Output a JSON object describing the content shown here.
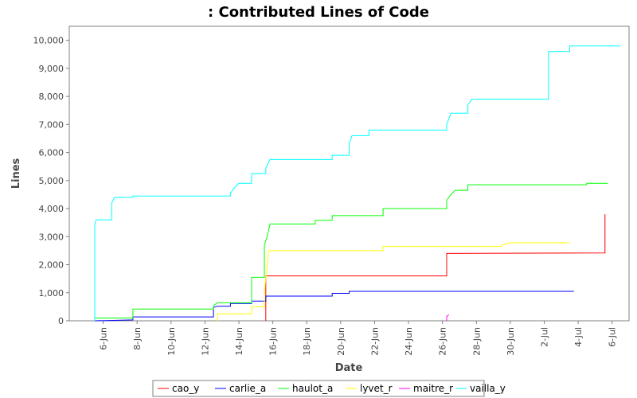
{
  "chart_data": {
    "type": "line",
    "title": ": Contributed Lines of Code",
    "xlabel": "Date",
    "ylabel": "Lines",
    "x_domain": [
      "2005-06-04",
      "2005-07-07"
    ],
    "ylim": [
      0,
      10500
    ],
    "y_ticks": [
      0,
      1000,
      2000,
      3000,
      4000,
      5000,
      6000,
      7000,
      8000,
      9000,
      10000
    ],
    "y_tick_labels": [
      "0",
      "1,000",
      "2,000",
      "3,000",
      "4,000",
      "5,000",
      "6,000",
      "7,000",
      "8,000",
      "9,000",
      "10,000"
    ],
    "x_ticks": [
      "2005-06-06",
      "2005-06-08",
      "2005-06-10",
      "2005-06-12",
      "2005-06-14",
      "2005-06-16",
      "2005-06-18",
      "2005-06-20",
      "2005-06-22",
      "2005-06-24",
      "2005-06-26",
      "2005-06-28",
      "2005-06-30",
      "2005-07-02",
      "2005-07-04",
      "2005-07-06"
    ],
    "x_tick_labels": [
      "6-Jun",
      "8-Jun",
      "10-Jun",
      "12-Jun",
      "14-Jun",
      "16-Jun",
      "18-Jun",
      "20-Jun",
      "22-Jun",
      "24-Jun",
      "26-Jun",
      "28-Jun",
      "30-Jun",
      "2-Jul",
      "4-Jul",
      "6-Jul"
    ],
    "grid": false,
    "legend_position": "bottom",
    "series": [
      {
        "name": "cao_y",
        "color": "#ff0000",
        "points": [
          [
            "2005-06-15 14:00",
            0
          ],
          [
            "2005-06-15 14:00",
            1600
          ],
          [
            "2005-06-26 06:00",
            1600
          ],
          [
            "2005-06-26 06:00",
            2400
          ],
          [
            "2005-07-05 14:00",
            2420
          ],
          [
            "2005-07-05 14:00",
            3800
          ]
        ]
      },
      {
        "name": "carlie_a",
        "color": "#0000ff",
        "points": [
          [
            "2005-06-05 12:00",
            0
          ],
          [
            "2005-06-07 18:00",
            30
          ],
          [
            "2005-06-07 18:00",
            140
          ],
          [
            "2005-06-12 12:00",
            140
          ],
          [
            "2005-06-12 12:00",
            480
          ],
          [
            "2005-06-12 18:00",
            520
          ],
          [
            "2005-06-13 12:00",
            520
          ],
          [
            "2005-06-13 12:00",
            620
          ],
          [
            "2005-06-14 18:00",
            620
          ],
          [
            "2005-06-14 18:00",
            700
          ],
          [
            "2005-06-15 14:00",
            700
          ],
          [
            "2005-06-15 14:00",
            880
          ],
          [
            "2005-06-19 12:00",
            880
          ],
          [
            "2005-06-19 12:00",
            980
          ],
          [
            "2005-06-20 12:00",
            980
          ],
          [
            "2005-06-20 12:00",
            1050
          ],
          [
            "2005-07-03 18:00",
            1050
          ]
        ]
      },
      {
        "name": "haulot_a",
        "color": "#00ff00",
        "points": [
          [
            "2005-06-05 12:00",
            0
          ],
          [
            "2005-06-05 12:00",
            100
          ],
          [
            "2005-06-07 18:00",
            100
          ],
          [
            "2005-06-07 18:00",
            420
          ],
          [
            "2005-06-12 12:00",
            420
          ],
          [
            "2005-06-12 12:00",
            550
          ],
          [
            "2005-06-12 18:00",
            640
          ],
          [
            "2005-06-14 18:00",
            640
          ],
          [
            "2005-06-14 18:00",
            1550
          ],
          [
            "2005-06-15 12:00",
            1550
          ],
          [
            "2005-06-15 12:00",
            2700
          ],
          [
            "2005-06-15 16:00",
            3000
          ],
          [
            "2005-06-15 20:00",
            3450
          ],
          [
            "2005-06-18 12:00",
            3450
          ],
          [
            "2005-06-18 12:00",
            3580
          ],
          [
            "2005-06-19 12:00",
            3580
          ],
          [
            "2005-06-19 12:00",
            3750
          ],
          [
            "2005-06-22 12:00",
            3750
          ],
          [
            "2005-06-22 12:00",
            4000
          ],
          [
            "2005-06-26 06:00",
            4000
          ],
          [
            "2005-06-26 06:00",
            4300
          ],
          [
            "2005-06-26 12:00",
            4500
          ],
          [
            "2005-06-26 18:00",
            4650
          ],
          [
            "2005-06-27 12:00",
            4650
          ],
          [
            "2005-06-27 12:00",
            4850
          ],
          [
            "2005-07-04 12:00",
            4850
          ],
          [
            "2005-07-04 12:00",
            4900
          ],
          [
            "2005-07-05 18:00",
            4900
          ]
        ]
      },
      {
        "name": "lyvet_r",
        "color": "#ffff00",
        "points": [
          [
            "2005-06-12 18:00",
            0
          ],
          [
            "2005-06-12 18:00",
            250
          ],
          [
            "2005-06-14 18:00",
            250
          ],
          [
            "2005-06-14 18:00",
            500
          ],
          [
            "2005-06-15 12:00",
            500
          ],
          [
            "2005-06-15 12:00",
            1000
          ],
          [
            "2005-06-15 18:00",
            2500
          ],
          [
            "2005-06-22 12:00",
            2500
          ],
          [
            "2005-06-22 12:00",
            2650
          ],
          [
            "2005-06-29 12:00",
            2650
          ],
          [
            "2005-06-29 12:00",
            2700
          ],
          [
            "2005-06-30 00:00",
            2780
          ],
          [
            "2005-07-03 12:00",
            2780
          ]
        ]
      },
      {
        "name": "maitre_r",
        "color": "#ff00ff",
        "points": [
          [
            "2005-06-26 06:00",
            0
          ],
          [
            "2005-06-26 06:00",
            150
          ],
          [
            "2005-06-26 09:00",
            220
          ]
        ]
      },
      {
        "name": "vailla_y",
        "color": "#00ffff",
        "points": [
          [
            "2005-06-05 12:00",
            0
          ],
          [
            "2005-06-05 12:00",
            3400
          ],
          [
            "2005-06-05 14:00",
            3600
          ],
          [
            "2005-06-06 12:00",
            3600
          ],
          [
            "2005-06-06 12:00",
            4200
          ],
          [
            "2005-06-06 16:00",
            4400
          ],
          [
            "2005-06-07 18:00",
            4400
          ],
          [
            "2005-06-07 18:00",
            4450
          ],
          [
            "2005-06-13 12:00",
            4450
          ],
          [
            "2005-06-13 12:00",
            4550
          ],
          [
            "2005-06-13 18:00",
            4750
          ],
          [
            "2005-06-14 00:00",
            4900
          ],
          [
            "2005-06-14 18:00",
            4900
          ],
          [
            "2005-06-14 18:00",
            5250
          ],
          [
            "2005-06-15 14:00",
            5250
          ],
          [
            "2005-06-15 14:00",
            5450
          ],
          [
            "2005-06-15 20:00",
            5750
          ],
          [
            "2005-06-19 12:00",
            5750
          ],
          [
            "2005-06-19 12:00",
            5900
          ],
          [
            "2005-06-20 12:00",
            5900
          ],
          [
            "2005-06-20 12:00",
            6300
          ],
          [
            "2005-06-20 16:00",
            6600
          ],
          [
            "2005-06-21 16:00",
            6600
          ],
          [
            "2005-06-21 16:00",
            6800
          ],
          [
            "2005-06-26 06:00",
            6800
          ],
          [
            "2005-06-26 06:00",
            7000
          ],
          [
            "2005-06-26 12:00",
            7400
          ],
          [
            "2005-06-27 12:00",
            7400
          ],
          [
            "2005-06-27 12:00",
            7700
          ],
          [
            "2005-06-27 18:00",
            7900
          ],
          [
            "2005-07-02 06:00",
            7900
          ],
          [
            "2005-07-02 06:00",
            9600
          ],
          [
            "2005-07-03 12:00",
            9600
          ],
          [
            "2005-07-03 12:00",
            9800
          ],
          [
            "2005-07-06 12:00",
            9800
          ]
        ]
      }
    ]
  }
}
